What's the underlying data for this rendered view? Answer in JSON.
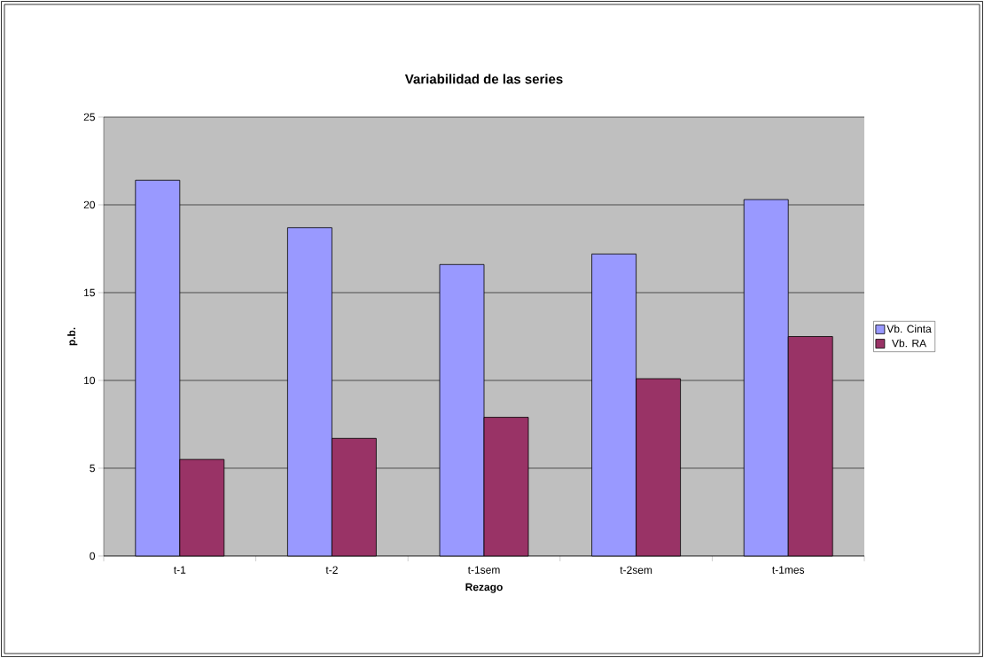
{
  "chart_data": {
    "type": "bar",
    "title": "Variabilidad de las series",
    "xlabel": "Rezago",
    "ylabel": "p.b.",
    "categories": [
      "t-1",
      "t-2",
      "t-1sem",
      "t-2sem",
      "t-1mes"
    ],
    "series": [
      {
        "name": "Vb. Cinta",
        "color": "#9999ff",
        "values": [
          21.4,
          18.7,
          16.6,
          17.2,
          20.3
        ]
      },
      {
        "name": "Vb. RA",
        "color": "#993366",
        "values": [
          5.5,
          6.7,
          7.9,
          10.1,
          12.5
        ]
      }
    ],
    "ylim": [
      0,
      25
    ],
    "yticks": [
      0,
      5,
      10,
      15,
      20,
      25
    ],
    "grid": "y",
    "legend": "right"
  }
}
